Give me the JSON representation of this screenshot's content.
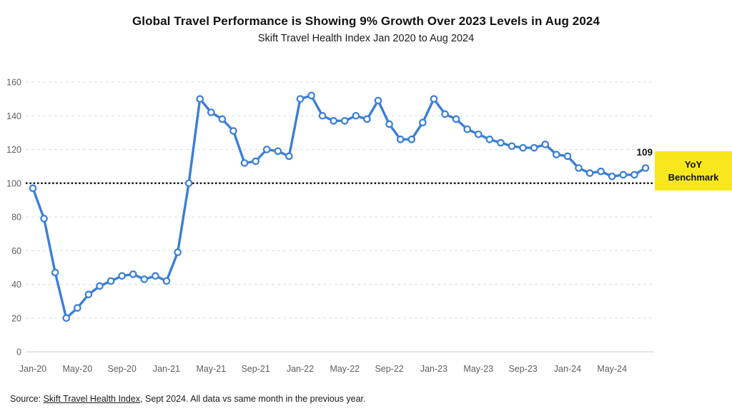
{
  "title": "Global Travel Performance is Showing 9% Growth Over 2023 Levels in Aug 2024",
  "subtitle": "Skift Travel Health Index Jan 2020 to Aug 2024",
  "last_point_label": "109",
  "benchmark": {
    "label": "YoY Benchmark",
    "value": 100,
    "box_color": "#f8e71c",
    "line_color": "#141414"
  },
  "source": {
    "prefix": "Source: ",
    "link": "Skift Travel Health Index",
    "suffix": ", Sept 2024. All data vs same month in the previous year."
  },
  "chart_data": {
    "type": "line",
    "title": "Global Travel Performance is Showing 9% Growth Over 2023 Levels in Aug 2024",
    "subtitle": "Skift Travel Health Index Jan 2020 to Aug 2024",
    "x": [
      "Jan-20",
      "Feb-20",
      "Mar-20",
      "Apr-20",
      "May-20",
      "Jun-20",
      "Jul-20",
      "Aug-20",
      "Sep-20",
      "Oct-20",
      "Nov-20",
      "Dec-20",
      "Jan-21",
      "Feb-21",
      "Mar-21",
      "Apr-21",
      "May-21",
      "Jun-21",
      "Jul-21",
      "Aug-21",
      "Sep-21",
      "Oct-21",
      "Nov-21",
      "Dec-21",
      "Jan-22",
      "Feb-22",
      "Mar-22",
      "Apr-22",
      "May-22",
      "Jun-22",
      "Jul-22",
      "Aug-22",
      "Sep-22",
      "Oct-22",
      "Nov-22",
      "Dec-22",
      "Jan-23",
      "Feb-23",
      "Mar-23",
      "Apr-23",
      "May-23",
      "Jun-23",
      "Jul-23",
      "Aug-23",
      "Sep-23",
      "Oct-23",
      "Nov-23",
      "Dec-23",
      "Jan-24",
      "Feb-24",
      "Mar-24",
      "Apr-24",
      "May-24",
      "Jun-24",
      "Jul-24",
      "Aug-24"
    ],
    "values": [
      97,
      79,
      47,
      20,
      26,
      34,
      39,
      42,
      45,
      46,
      43,
      45,
      42,
      59,
      100,
      150,
      142,
      138,
      131,
      112,
      113,
      120,
      119,
      116,
      150,
      152,
      140,
      137,
      137,
      140,
      138,
      149,
      135,
      126,
      126,
      136,
      150,
      141,
      138,
      132,
      129,
      126,
      124,
      122,
      121,
      121,
      123,
      117,
      116,
      109,
      106,
      107,
      104,
      105,
      105,
      109
    ],
    "x_tick_labels": [
      "Jan-20",
      "May-20",
      "Sep-20",
      "Jan-21",
      "May-21",
      "Sep-21",
      "Jan-22",
      "May-22",
      "Sep-22",
      "Jan-23",
      "May-23",
      "Sep-23",
      "Jan-24",
      "May-24"
    ],
    "x_tick_every": 4,
    "y_ticks": [
      0,
      20,
      40,
      60,
      80,
      100,
      120,
      140,
      160
    ],
    "ylim": [
      0,
      160
    ],
    "benchmark_line": 100,
    "grid": "horizontal-dashed",
    "legend_position": "none",
    "line_color": "#3a7fd5",
    "marker": "open-circle",
    "marker_fill": "#ffffff",
    "grid_color": "#d9dcdf",
    "axis_label_color": "#5b5f63",
    "last_value_annotation": "109"
  }
}
